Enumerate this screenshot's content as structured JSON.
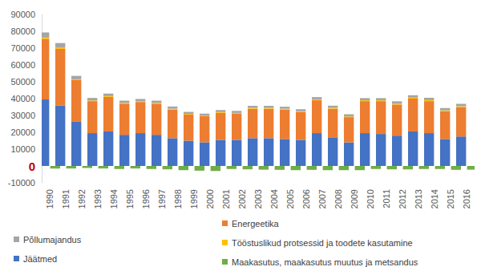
{
  "chart_data": {
    "type": "bar",
    "stacked": true,
    "grid": false,
    "legend": "bottom",
    "categories": [
      "1990",
      "1991",
      "1992",
      "1993",
      "1994",
      "1995",
      "1996",
      "1997",
      "1998",
      "1999",
      "2000",
      "2001",
      "2002",
      "2003",
      "2004",
      "2005",
      "2006",
      "2007",
      "2008",
      "2009",
      "2010",
      "2011",
      "2012",
      "2013",
      "2014",
      "2015",
      "2016"
    ],
    "ylim": [
      -10000,
      90000
    ],
    "yticks": [
      -10000,
      0,
      10000,
      20000,
      30000,
      40000,
      50000,
      60000,
      70000,
      80000,
      90000
    ],
    "series": [
      {
        "name": "Jäätmed",
        "color": "#4472c4",
        "values": [
          39500,
          36000,
          26500,
          19500,
          20500,
          18500,
          19500,
          18500,
          16500,
          15000,
          14000,
          15500,
          15500,
          16500,
          16500,
          16000,
          15500,
          19500,
          17000,
          14000,
          19500,
          19000,
          18000,
          20500,
          19500,
          16000,
          17500
        ]
      },
      {
        "name": "Energeetika",
        "color": "#ed7d31",
        "values": [
          36000,
          33500,
          24500,
          19000,
          20500,
          18500,
          18500,
          18500,
          17000,
          15500,
          15500,
          16000,
          15500,
          17500,
          17500,
          17500,
          16500,
          19500,
          17000,
          15000,
          19000,
          19500,
          18500,
          19500,
          19000,
          16500,
          17500
        ]
      },
      {
        "name": "Tööstuslikud protsessid ja toodete kasutamine",
        "color": "#ffc000",
        "values": [
          800,
          700,
          500,
          400,
          500,
          500,
          500,
          500,
          500,
          400,
          400,
          500,
          500,
          500,
          500,
          500,
          500,
          600,
          500,
          400,
          500,
          500,
          500,
          600,
          600,
          500,
          500
        ]
      },
      {
        "name": "Põllumajandus",
        "color": "#a5a5a5",
        "values": [
          3000,
          2800,
          2000,
          1500,
          1500,
          1300,
          1300,
          1300,
          1300,
          1200,
          1200,
          1200,
          1200,
          1200,
          1200,
          1200,
          1200,
          1300,
          1300,
          1300,
          1300,
          1300,
          1400,
          1400,
          1400,
          1400,
          1400
        ]
      },
      {
        "name": "Maakasutus, maakasutus muutus ja metsandus",
        "color": "#70ad47",
        "values": [
          -1500,
          -1500,
          -1200,
          -1500,
          -1800,
          -1500,
          -1800,
          -2000,
          -2500,
          -2800,
          -3000,
          -1800,
          -2000,
          -2200,
          -2300,
          -2500,
          -2300,
          -2500,
          -2500,
          -2500,
          -1800,
          -2000,
          -2000,
          -1800,
          -1800,
          -2300,
          -2200
        ]
      }
    ]
  }
}
